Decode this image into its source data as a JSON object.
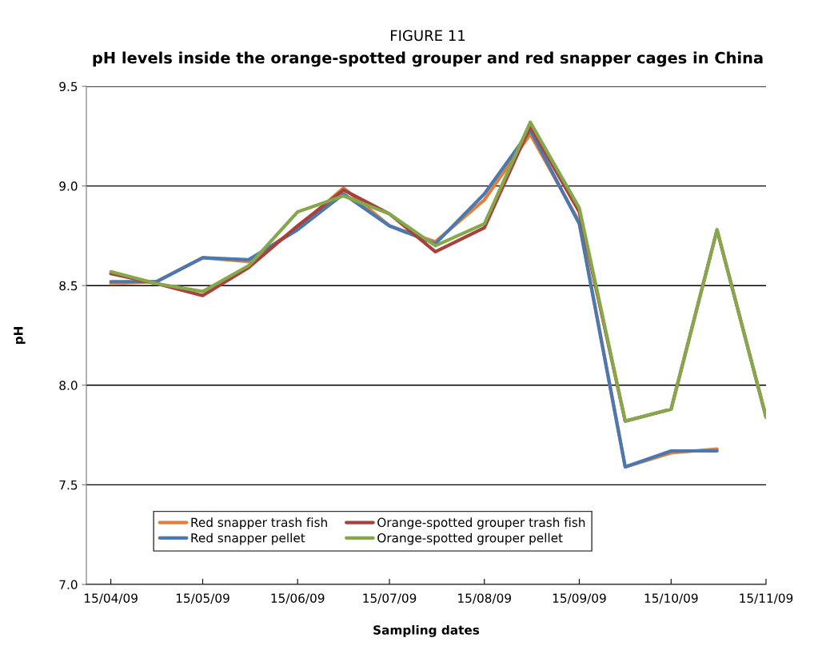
{
  "chart_data": {
    "type": "line",
    "title": "FIGURE 11",
    "subtitle": "pH levels inside the orange-spotted grouper and red snapper cages in China",
    "xlabel": "Sampling dates",
    "ylabel": "pH",
    "x": [
      "2009-04-15",
      "2009-04-30",
      "2009-05-15",
      "2009-05-30",
      "2009-06-15",
      "2009-06-30",
      "2009-07-15",
      "2009-07-30",
      "2009-08-15",
      "2009-08-30",
      "2009-09-15",
      "2009-09-30",
      "2009-10-15",
      "2009-10-30",
      "2009-11-15"
    ],
    "series": [
      {
        "name": "Red snapper trash fish",
        "color": "#e0803a",
        "values": [
          8.51,
          8.52,
          8.64,
          8.62,
          8.79,
          8.99,
          8.8,
          8.72,
          8.93,
          9.26,
          8.82,
          7.59,
          7.66,
          7.68,
          null
        ]
      },
      {
        "name": "Red snapper pellet",
        "color": "#4a78b0",
        "values": [
          8.52,
          8.52,
          8.64,
          8.63,
          8.78,
          8.96,
          8.8,
          8.71,
          8.96,
          9.28,
          8.81,
          7.59,
          7.67,
          7.67,
          null
        ]
      },
      {
        "name": "Orange-spotted grouper trash fish",
        "color": "#a8413c",
        "values": [
          8.56,
          8.51,
          8.45,
          8.59,
          8.8,
          8.98,
          8.86,
          8.67,
          8.79,
          9.3,
          8.87,
          7.82,
          7.88,
          8.78,
          7.84
        ]
      },
      {
        "name": "Orange-spotted grouper pellet",
        "color": "#85a84a",
        "values": [
          8.57,
          8.51,
          8.47,
          8.6,
          8.87,
          8.95,
          8.86,
          8.7,
          8.81,
          9.32,
          8.89,
          7.82,
          7.88,
          8.78,
          7.84
        ]
      }
    ],
    "xlim": [
      "2009-04-07",
      "2009-11-15"
    ],
    "xticks": [
      {
        "value": "2009-04-15",
        "label": "15/04/09"
      },
      {
        "value": "2009-05-15",
        "label": "15/05/09"
      },
      {
        "value": "2009-06-15",
        "label": "15/06/09"
      },
      {
        "value": "2009-07-15",
        "label": "15/07/09"
      },
      {
        "value": "2009-08-15",
        "label": "15/08/09"
      },
      {
        "value": "2009-09-15",
        "label": "15/09/09"
      },
      {
        "value": "2009-10-15",
        "label": "15/10/09"
      },
      {
        "value": "2009-11-15",
        "label": "15/11/09"
      }
    ],
    "ylim": [
      7.0,
      9.5
    ],
    "yticks": [
      {
        "value": 7.0,
        "label": "7.0"
      },
      {
        "value": 7.5,
        "label": "7.5"
      },
      {
        "value": 8.0,
        "label": "8.0"
      },
      {
        "value": 8.5,
        "label": "8.5"
      },
      {
        "value": 9.0,
        "label": "9.0"
      },
      {
        "value": 9.5,
        "label": "9.5"
      }
    ],
    "grid": "y",
    "legend": "bottom",
    "marker": "none",
    "line_style": "solid"
  }
}
